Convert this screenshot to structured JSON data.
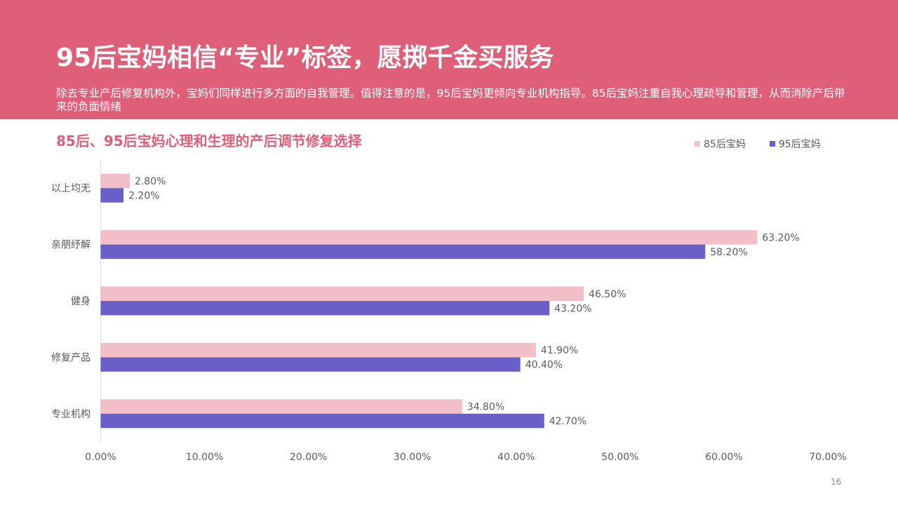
{
  "slide": {
    "title": "95后宝妈相信“专业”标签，愿掷千金买服务",
    "description": "除去专业产后修复机构外，宝妈们同样进行多方面的自我管理。值得注意的是，95后宝妈更倾向专业机构指导。85后宝妈注重自我心理疏导和管理，从而消除产后带来的负面情绪",
    "page_number": "16"
  },
  "colors": {
    "banner": "#df5f78",
    "series_85": "#f2bfc9",
    "series_95": "#6a5fc8",
    "chart_title": "#df5f78"
  },
  "chart_data": {
    "type": "bar",
    "orientation": "horizontal",
    "title": "85后、95后宝妈心理和生理的产后调节修复选择",
    "categories": [
      "以上均无",
      "亲朋纾解",
      "健身",
      "修复产品",
      "专业机构"
    ],
    "series": [
      {
        "name": "85后宝妈",
        "values": [
          2.8,
          63.2,
          46.5,
          41.9,
          34.8
        ],
        "labels": [
          "2.80%",
          "63.20%",
          "46.50%",
          "41.90%",
          "34.80%"
        ]
      },
      {
        "name": "95后宝妈",
        "values": [
          2.2,
          58.2,
          43.2,
          40.4,
          42.7
        ],
        "labels": [
          "2.20%",
          "58.20%",
          "43.20%",
          "40.40%",
          "42.70%"
        ]
      }
    ],
    "xlim": [
      0,
      70
    ],
    "ticks": [
      "0.00%",
      "10.00%",
      "20.00%",
      "30.00%",
      "40.00%",
      "50.00%",
      "60.00%",
      "70.00%"
    ],
    "legend_position": "top-right",
    "grid": false
  }
}
